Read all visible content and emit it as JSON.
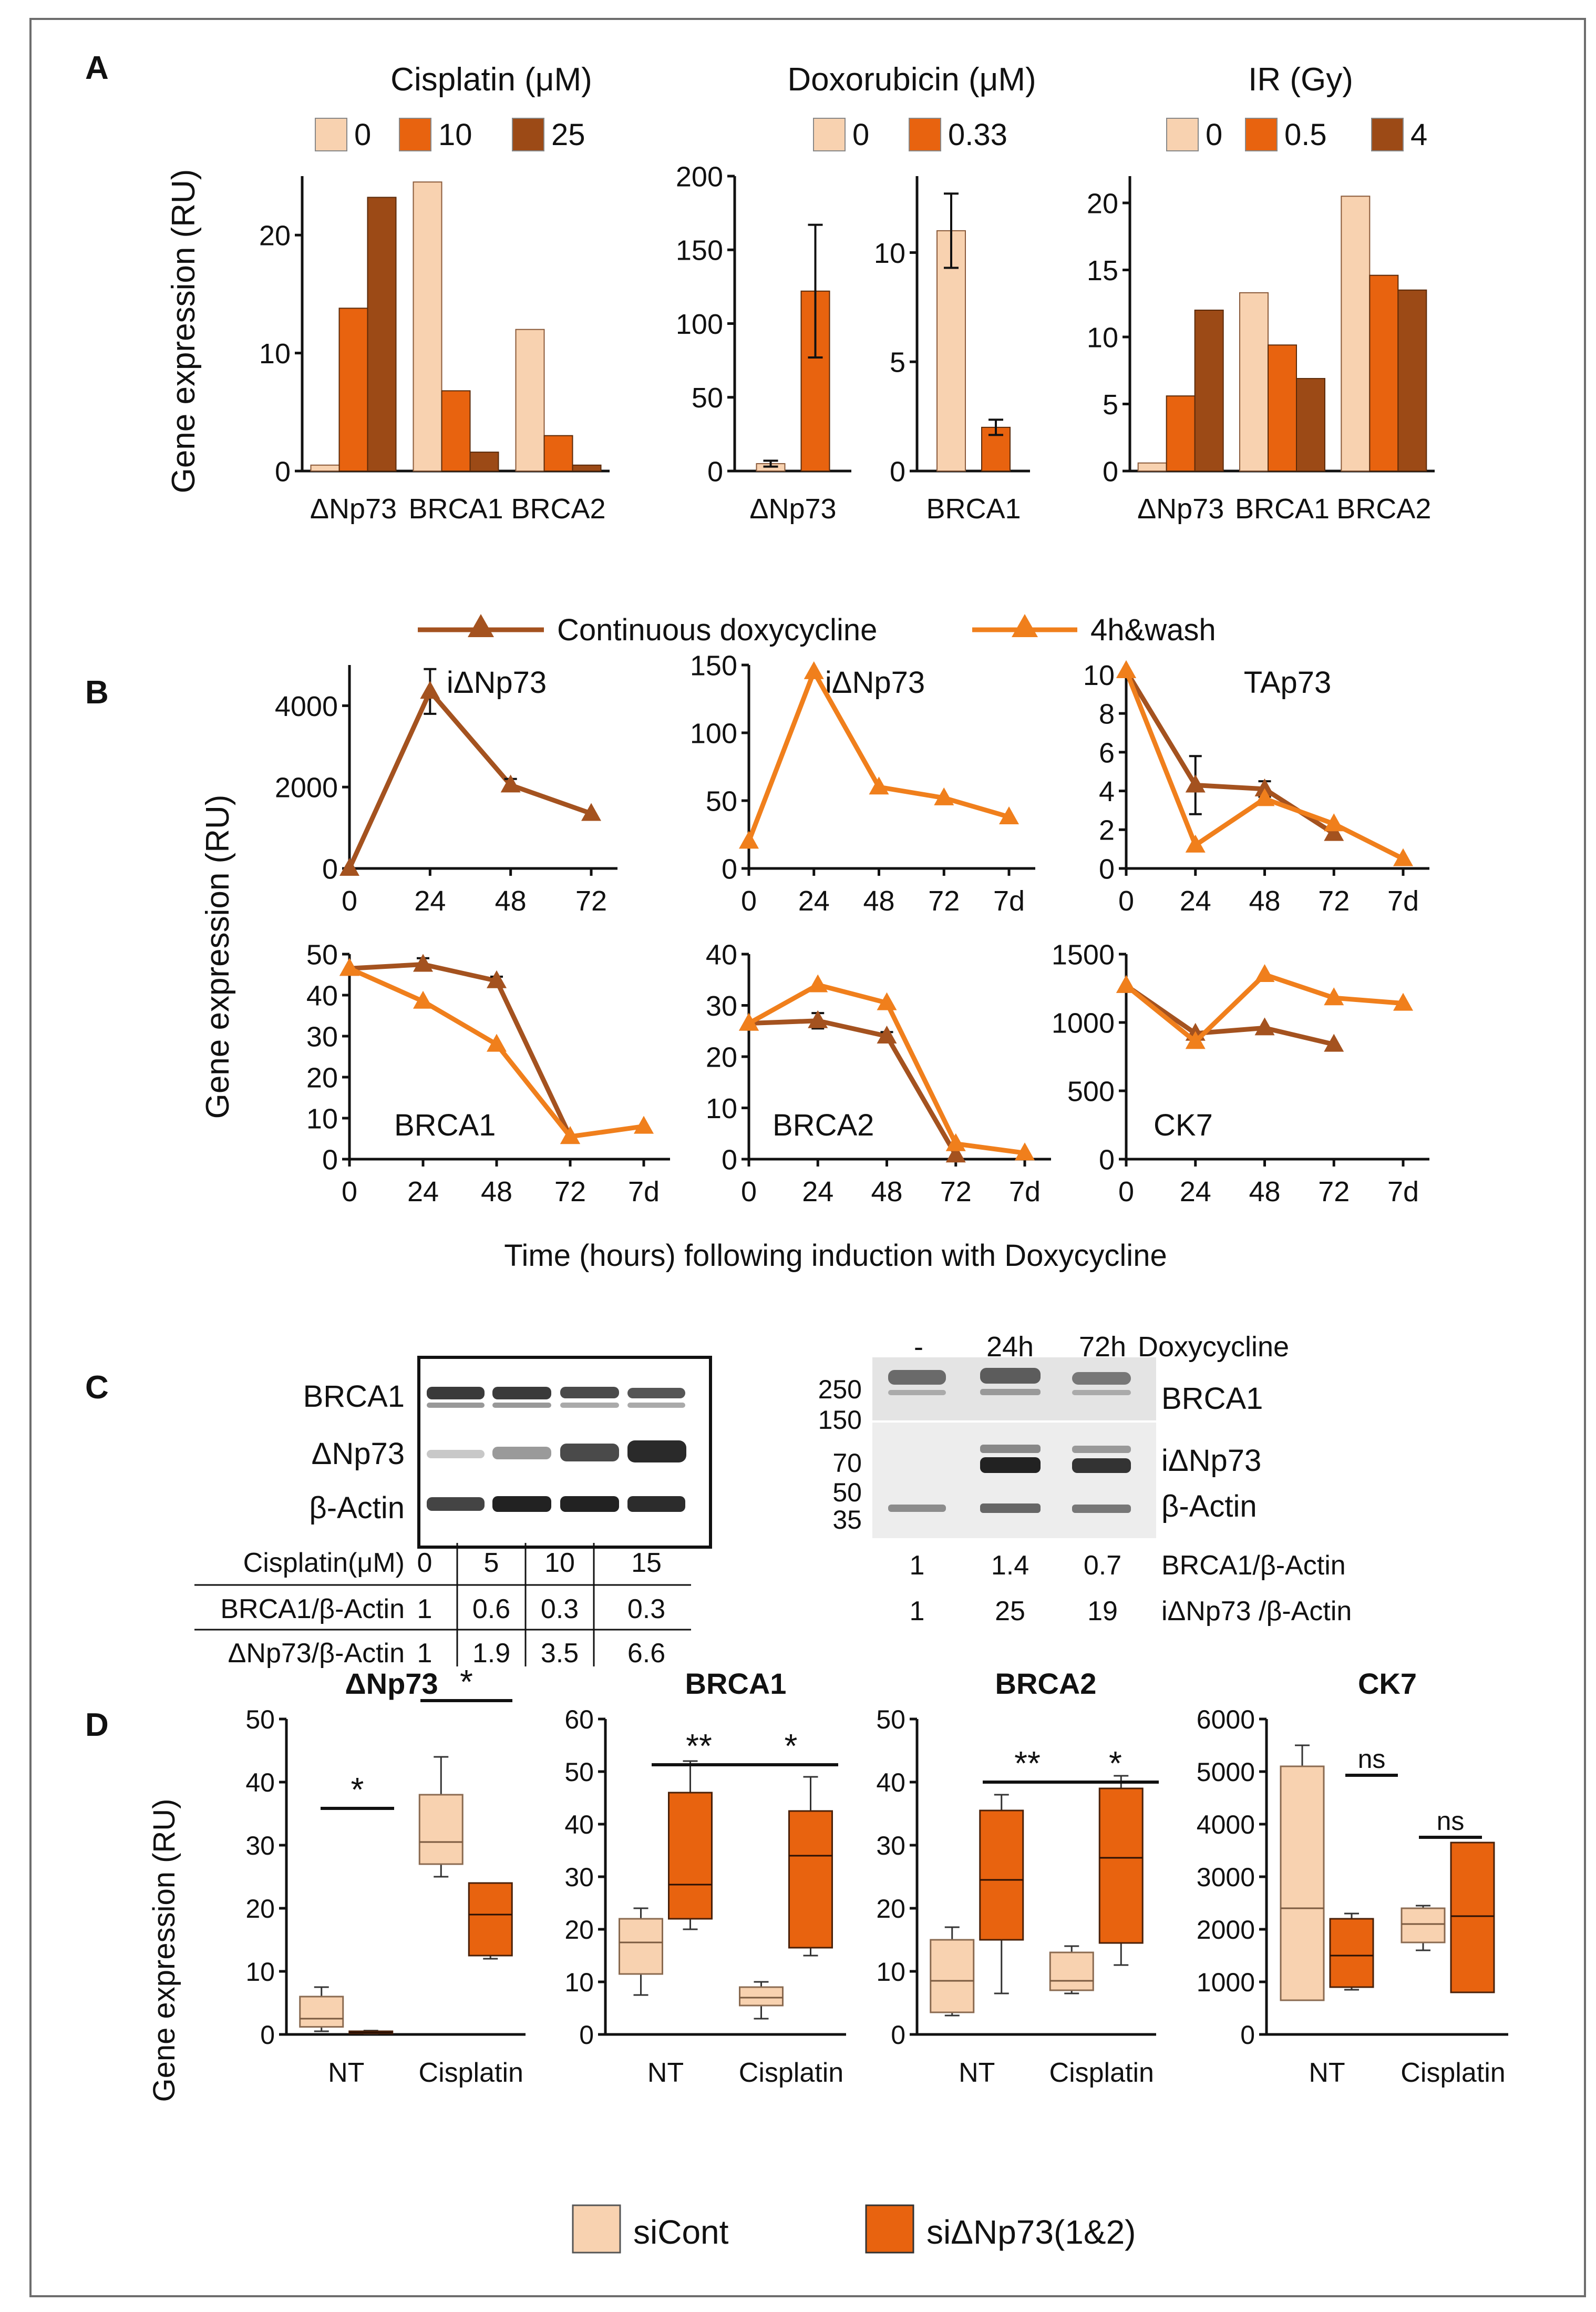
{
  "colors": {
    "light": "#F8D2B0",
    "mid": "#E8630F",
    "dark": "#9C4A16",
    "darkLine": "#A4521F",
    "lightLine": "#F07F1C"
  },
  "panelLabels": [
    "A",
    "B",
    "C",
    "D"
  ],
  "panelA": {
    "ylabel": "Gene expression (RU)",
    "cisplatin": {
      "title": "Cisplatin (μM)",
      "legend": [
        "0",
        "10",
        "25"
      ],
      "categories": [
        "ΔNp73",
        "BRCA1",
        "BRCA2"
      ],
      "yticks": [
        "0",
        "10",
        "20"
      ]
    },
    "doxorubicin": {
      "title": "Doxorubicin (μM)",
      "legend": [
        "0",
        "0.33"
      ],
      "left": {
        "categories": [
          "ΔNp73"
        ],
        "yticks": [
          "0",
          "50",
          "100",
          "150",
          "200"
        ]
      },
      "right": {
        "categories": [
          "BRCA1"
        ],
        "yticks": [
          "0",
          "5",
          "10"
        ]
      }
    },
    "ir": {
      "title": "IR (Gy)",
      "legend": [
        "0",
        "0.5",
        "4"
      ],
      "categories": [
        "ΔNp73",
        "BRCA1",
        "BRCA2"
      ],
      "yticks": [
        "0",
        "5",
        "10",
        "15",
        "20"
      ]
    }
  },
  "panelB": {
    "legend": [
      "Continuous doxycycline",
      "4h&wash"
    ],
    "ylabel": "Gene expression (RU)",
    "xlabel": "Time (hours) following induction with Doxycycline",
    "charts": [
      {
        "label": "iΔNp73",
        "xticks": [
          "0",
          "24",
          "48",
          "72"
        ],
        "yticks": [
          "0",
          "2000",
          "4000"
        ]
      },
      {
        "label": "iΔNp73",
        "xticks": [
          "0",
          "24",
          "48",
          "72",
          "7d"
        ],
        "yticks": [
          "0",
          "50",
          "100",
          "150"
        ]
      },
      {
        "label": "TAp73",
        "xticks": [
          "0",
          "24",
          "48",
          "72",
          "7d"
        ],
        "yticks": [
          "0",
          "2",
          "4",
          "6",
          "8",
          "10"
        ]
      },
      {
        "label": "BRCA1",
        "xticks": [
          "0",
          "24",
          "48",
          "72",
          "7d"
        ],
        "yticks": [
          "0",
          "10",
          "20",
          "30",
          "40",
          "50"
        ]
      },
      {
        "label": "BRCA2",
        "xticks": [
          "0",
          "24",
          "48",
          "72",
          "7d"
        ],
        "yticks": [
          "0",
          "10",
          "20",
          "30",
          "40"
        ]
      },
      {
        "label": "CK7",
        "xticks": [
          "0",
          "24",
          "48",
          "72",
          "7d"
        ],
        "yticks": [
          "0",
          "500",
          "1000",
          "1500"
        ]
      }
    ]
  },
  "panelC": {
    "left": {
      "rowLabels": [
        "BRCA1",
        "ΔNp73",
        "β-Actin"
      ],
      "table": {
        "header": [
          "Cisplatin(μM)",
          "0",
          "5",
          "10",
          "15"
        ],
        "rows": [
          [
            "BRCA1/β-Actin",
            "1",
            "0.6",
            "0.3",
            "0.3"
          ],
          [
            "ΔNp73/β-Actin",
            "1",
            "1.9",
            "3.5",
            "6.6"
          ]
        ]
      }
    },
    "right": {
      "lanes": [
        "-",
        "24h",
        "72h"
      ],
      "treatment": "Doxycycline",
      "markers": [
        "250",
        "150",
        "70",
        "50",
        "35"
      ],
      "rowLabels": [
        "BRCA1",
        "iΔNp73",
        "β-Actin"
      ],
      "quant": [
        {
          "values": [
            "1",
            "1.4",
            "0.7"
          ],
          "label": "BRCA1/β-Actin"
        },
        {
          "values": [
            "1",
            "25",
            "19"
          ],
          "label": "iΔNp73 /β-Actin"
        }
      ]
    }
  },
  "panelD": {
    "ylabel": "Gene expression (RU)",
    "legend": [
      "siCont",
      "siΔNp73(1&2)"
    ],
    "xcats": [
      "NT",
      "Cisplatin"
    ],
    "charts": [
      {
        "title": "ΔNp73",
        "yticks": [
          "0",
          "10",
          "20",
          "30",
          "40",
          "50"
        ],
        "sig": [
          "*",
          "*"
        ]
      },
      {
        "title": "BRCA1",
        "yticks": [
          "0",
          "10",
          "20",
          "30",
          "40",
          "50",
          "60"
        ],
        "sig": [
          "**",
          "*"
        ]
      },
      {
        "title": "BRCA2",
        "yticks": [
          "0",
          "10",
          "20",
          "30",
          "40",
          "50"
        ],
        "sig": [
          "**",
          "*"
        ]
      },
      {
        "title": "CK7",
        "yticks": [
          "0",
          "1000",
          "2000",
          "3000",
          "4000",
          "5000",
          "6000"
        ],
        "sig": [
          "ns",
          "ns"
        ]
      }
    ]
  },
  "chart_data": [
    {
      "id": "A-cisplatin",
      "type": "bar",
      "title": "Cisplatin (μM)",
      "ylabel": "Gene expression (RU)",
      "categories": [
        "ΔNp73",
        "BRCA1",
        "BRCA2"
      ],
      "ylim": [
        0,
        25
      ],
      "series": [
        {
          "name": "0",
          "values": [
            0.5,
            24.5,
            12
          ]
        },
        {
          "name": "10",
          "values": [
            13.8,
            6.8,
            3
          ]
        },
        {
          "name": "25",
          "values": [
            23.2,
            1.6,
            0.5
          ]
        }
      ]
    },
    {
      "id": "A-doxorubicin-dNp73",
      "type": "bar",
      "title": "Doxorubicin (μM)",
      "categories": [
        "ΔNp73"
      ],
      "ylim": [
        0,
        200
      ],
      "series": [
        {
          "name": "0",
          "values": [
            5
          ],
          "errors": [
            2
          ]
        },
        {
          "name": "0.33",
          "values": [
            122
          ],
          "errors": [
            45
          ]
        }
      ]
    },
    {
      "id": "A-doxorubicin-BRCA1",
      "type": "bar",
      "title": "Doxorubicin (μM)",
      "categories": [
        "BRCA1"
      ],
      "ylim": [
        0,
        13.5
      ],
      "series": [
        {
          "name": "0",
          "values": [
            11
          ],
          "errors": [
            1.7
          ]
        },
        {
          "name": "0.33",
          "values": [
            2
          ],
          "errors": [
            0.35
          ]
        }
      ]
    },
    {
      "id": "A-IR",
      "type": "bar",
      "title": "IR (Gy)",
      "categories": [
        "ΔNp73",
        "BRCA1",
        "BRCA2"
      ],
      "ylim": [
        0,
        22
      ],
      "series": [
        {
          "name": "0",
          "values": [
            0.6,
            13.3,
            20.5
          ]
        },
        {
          "name": "0.5",
          "values": [
            5.6,
            9.4,
            14.6
          ]
        },
        {
          "name": "4",
          "values": [
            12,
            6.9,
            13.5
          ]
        }
      ]
    },
    {
      "id": "B-1",
      "type": "line",
      "label": "iΔNp73",
      "x": [
        "0",
        "24",
        "48",
        "72"
      ],
      "ylim": [
        0,
        5000
      ],
      "series": [
        {
          "name": "Continuous doxycycline",
          "values": [
            0,
            4350,
            2050,
            1350
          ],
          "errors": [
            0,
            550,
            150,
            0
          ]
        }
      ]
    },
    {
      "id": "B-2",
      "type": "line",
      "label": "iΔNp73",
      "x": [
        "0",
        "24",
        "48",
        "72",
        "7d"
      ],
      "ylim": [
        0,
        150
      ],
      "series": [
        {
          "name": "4h&wash",
          "values": [
            20,
            145,
            60,
            52,
            38
          ]
        }
      ]
    },
    {
      "id": "B-3",
      "type": "line",
      "label": "TAp73",
      "x": [
        "0",
        "24",
        "48",
        "72",
        "7d"
      ],
      "ylim": [
        0,
        10.5
      ],
      "series": [
        {
          "name": "Continuous doxycycline",
          "values": [
            10.2,
            4.3,
            4.1,
            1.8,
            null
          ],
          "errors": [
            0,
            1.5,
            0.4,
            0.3,
            null
          ]
        },
        {
          "name": "4h&wash",
          "values": [
            10.2,
            1.2,
            3.6,
            2.3,
            0.5
          ]
        }
      ]
    },
    {
      "id": "B-4",
      "type": "line",
      "label": "BRCA1",
      "x": [
        "0",
        "24",
        "48",
        "72",
        "7d"
      ],
      "ylim": [
        0,
        50
      ],
      "series": [
        {
          "name": "Continuous doxycycline",
          "values": [
            46.5,
            47.5,
            43.5,
            5.5,
            null
          ],
          "errors": [
            0,
            1.5,
            1,
            0,
            null
          ]
        },
        {
          "name": "4h&wash",
          "values": [
            46.5,
            38.5,
            28,
            5.5,
            8
          ]
        }
      ]
    },
    {
      "id": "B-5",
      "type": "line",
      "label": "BRCA2",
      "x": [
        "0",
        "24",
        "48",
        "72",
        "7d"
      ],
      "ylim": [
        0,
        40
      ],
      "series": [
        {
          "name": "Continuous doxycycline",
          "values": [
            26.5,
            27,
            24,
            0.8,
            null
          ],
          "errors": [
            0,
            1.5,
            0.8,
            0,
            null
          ]
        },
        {
          "name": "4h&wash",
          "values": [
            26.5,
            34,
            30.5,
            3,
            1.2
          ]
        }
      ]
    },
    {
      "id": "B-6",
      "type": "line",
      "label": "CK7",
      "x": [
        "0",
        "24",
        "48",
        "72",
        "7d"
      ],
      "ylim": [
        0,
        1500
      ],
      "series": [
        {
          "name": "Continuous doxycycline",
          "values": [
            1270,
            920,
            960,
            840,
            null
          ]
        },
        {
          "name": "4h&wash",
          "values": [
            1270,
            860,
            1350,
            1180,
            1140
          ]
        }
      ]
    },
    {
      "id": "D-dNp73",
      "type": "box",
      "title": "ΔNp73",
      "categories": [
        "NT",
        "Cisplatin"
      ],
      "ylim": [
        0,
        50
      ],
      "series": [
        {
          "name": "siCont",
          "boxes": [
            {
              "min": 0.5,
              "q1": 1.2,
              "median": 2.5,
              "q3": 6,
              "max": 7.5
            },
            {
              "min": 25,
              "q1": 27,
              "median": 30.5,
              "q3": 38,
              "max": 44
            }
          ]
        },
        {
          "name": "siΔNp73(1&2)",
          "boxes": [
            {
              "min": 0.1,
              "q1": 0.2,
              "median": 0.3,
              "q3": 0.5,
              "max": 0.6
            },
            {
              "min": 12,
              "q1": 12.5,
              "median": 19,
              "q3": 24,
              "max": 24
            }
          ]
        }
      ]
    },
    {
      "id": "D-BRCA1",
      "type": "box",
      "title": "BRCA1",
      "categories": [
        "NT",
        "Cisplatin"
      ],
      "ylim": [
        0,
        60
      ],
      "series": [
        {
          "name": "siCont",
          "boxes": [
            {
              "min": 7.5,
              "q1": 11.5,
              "median": 17.5,
              "q3": 22,
              "max": 24
            },
            {
              "min": 3,
              "q1": 5.5,
              "median": 7,
              "q3": 9,
              "max": 10
            }
          ]
        },
        {
          "name": "siΔNp73(1&2)",
          "boxes": [
            {
              "min": 20,
              "q1": 22,
              "median": 28.5,
              "q3": 46,
              "max": 52
            },
            {
              "min": 15,
              "q1": 16.5,
              "median": 34,
              "q3": 42.5,
              "max": 49
            }
          ]
        }
      ]
    },
    {
      "id": "D-BRCA2",
      "type": "box",
      "title": "BRCA2",
      "categories": [
        "NT",
        "Cisplatin"
      ],
      "ylim": [
        0,
        50
      ],
      "series": [
        {
          "name": "siCont",
          "boxes": [
            {
              "min": 3,
              "q1": 3.5,
              "median": 8.5,
              "q3": 15,
              "max": 17
            },
            {
              "min": 6.5,
              "q1": 7,
              "median": 8.5,
              "q3": 13,
              "max": 14
            }
          ]
        },
        {
          "name": "siΔNp73(1&2)",
          "boxes": [
            {
              "min": 6.5,
              "q1": 15,
              "median": 24.5,
              "q3": 35.5,
              "max": 38
            },
            {
              "min": 11,
              "q1": 14.5,
              "median": 28,
              "q3": 39,
              "max": 41
            }
          ]
        }
      ]
    },
    {
      "id": "D-CK7",
      "type": "box",
      "title": "CK7",
      "categories": [
        "NT",
        "Cisplatin"
      ],
      "ylim": [
        0,
        6000
      ],
      "series": [
        {
          "name": "siCont",
          "boxes": [
            {
              "min": 650,
              "q1": 650,
              "median": 2400,
              "q3": 5100,
              "max": 5500
            },
            {
              "min": 1600,
              "q1": 1750,
              "median": 2100,
              "q3": 2400,
              "max": 2450
            }
          ]
        },
        {
          "name": "siΔNp73(1&2)",
          "boxes": [
            {
              "min": 850,
              "q1": 900,
              "median": 1500,
              "q3": 2200,
              "max": 2300
            },
            {
              "min": 800,
              "q1": 800,
              "median": 2250,
              "q3": 3650,
              "max": 3650
            }
          ]
        }
      ]
    }
  ]
}
